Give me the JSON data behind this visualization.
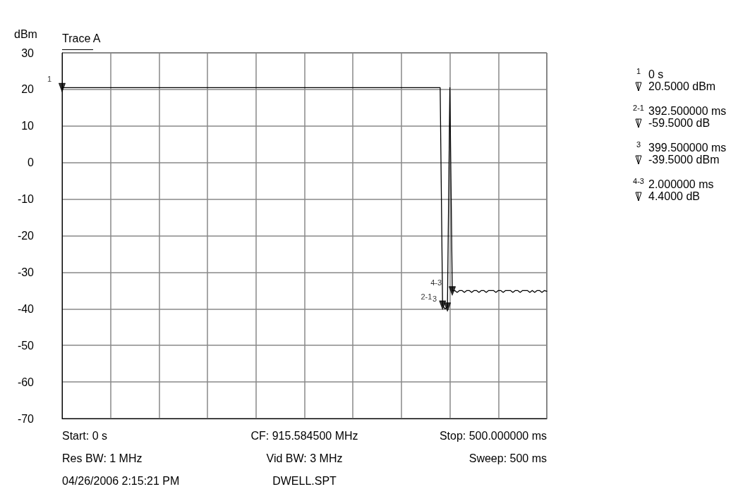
{
  "chart_data": {
    "type": "line",
    "subtitle": "Trace A",
    "ylabel": "dBm",
    "categories": [
      null,
      null,
      null,
      null,
      null,
      null,
      null,
      null,
      null,
      null,
      null,
      null,
      null,
      null,
      null,
      null,
      null,
      null,
      null,
      null,
      null,
      null,
      null,
      null,
      null,
      null,
      null,
      null,
      null,
      null,
      null,
      null,
      null,
      null,
      null,
      null,
      null,
      null,
      null,
      null,
      null,
      null,
      null,
      null,
      null,
      null,
      null,
      null,
      null,
      null,
      null,
      null,
      null,
      null,
      null,
      null,
      null,
      null,
      null,
      null,
      null,
      null,
      null,
      null,
      null,
      null,
      null,
      null,
      null,
      null,
      null,
      null,
      null,
      null,
      null,
      null,
      null,
      null,
      null,
      null,
      null,
      null,
      null,
      null,
      null,
      null,
      null,
      null,
      null,
      null,
      null,
      null,
      null,
      null,
      null,
      null,
      null,
      null,
      null,
      null,
      null,
      null,
      null,
      null,
      null,
      null,
      null,
      null,
      null,
      null,
      null,
      null,
      null,
      null,
      null,
      null,
      null,
      null,
      null,
      null,
      null,
      null,
      null,
      null,
      null,
      null,
      null,
      null,
      null,
      null,
      null,
      null,
      null,
      null,
      null,
      null,
      null,
      null,
      null,
      null,
      null,
      null,
      null,
      null,
      null,
      null,
      null,
      null,
      null,
      null,
      null,
      null,
      null,
      null,
      null,
      null,
      null,
      null,
      null,
      null,
      null,
      null,
      null,
      null,
      null,
      null,
      null,
      null,
      null,
      null,
      null,
      null,
      null,
      null,
      null,
      null,
      null,
      null,
      null,
      null,
      null,
      null,
      null,
      null,
      null,
      null,
      null,
      null,
      null,
      null,
      null,
      null,
      null,
      null,
      null,
      null,
      null,
      null,
      null,
      null,
      null
    ],
    "series": [
      {
        "color": "#000000",
        "values": [
          20.5,
          20.5,
          20.5,
          20.5,
          20.5,
          20.5,
          20.5,
          20.5,
          20.5,
          20.5,
          20.5,
          20.5,
          20.5,
          20.5,
          20.5,
          20.5,
          20.5,
          20.5,
          20.5,
          20.5,
          20.5,
          20.5,
          20.5,
          20.5,
          20.5,
          20.5,
          20.5,
          20.5,
          20.5,
          20.5,
          20.5,
          20.5,
          20.5,
          20.5,
          20.5,
          20.5,
          20.5,
          20.5,
          20.5,
          20.5,
          20.5,
          20.5,
          20.5,
          20.5,
          20.5,
          20.5,
          20.5,
          20.5,
          20.5,
          20.5,
          20.5,
          20.5,
          20.5,
          20.5,
          20.5,
          20.5,
          20.5,
          20.5,
          20.5,
          20.5,
          20.5,
          20.5,
          20.5,
          20.5,
          20.5,
          20.5,
          20.5,
          20.5,
          20.5,
          20.5,
          20.5,
          20.5,
          20.5,
          20.5,
          20.5,
          20.5,
          20.5,
          20.5,
          20.5,
          20.5,
          20.5,
          20.5,
          20.5,
          20.5,
          20.5,
          20.5,
          20.5,
          20.5,
          20.5,
          20.5,
          20.5,
          20.5,
          20.5,
          20.5,
          20.5,
          20.5,
          20.5,
          20.5,
          20.5,
          20.5,
          20.5,
          20.5,
          20.5,
          20.5,
          20.5,
          20.5,
          20.5,
          20.5,
          20.5,
          20.5,
          20.5,
          20.5,
          20.5,
          20.5,
          20.5,
          20.5,
          20.5,
          20.5,
          20.5,
          20.5,
          20.5,
          20.5,
          20.5,
          20.5,
          20.5,
          20.5,
          20.5,
          20.5,
          20.5,
          20.5,
          20.5,
          20.5,
          20.5,
          20.5,
          20.5,
          20.5,
          20.5,
          20.5,
          20.5,
          20.5,
          20.5,
          20.5,
          20.5,
          20.5,
          20.5,
          20.5,
          20.5,
          20.5,
          20.5,
          20.5,
          20.5,
          20.5,
          20.5,
          20.5,
          20.5,
          20.5,
          20.5,
          -39,
          -40,
          -39.5,
          20.5,
          -35.1,
          -35,
          -35.5,
          -35,
          -35,
          -35.5,
          -35,
          -35,
          -35.5,
          -35,
          -35,
          -35.5,
          -35,
          -35,
          -35.5,
          -35,
          -35,
          -35,
          -35.5,
          -35,
          -35,
          -35.5,
          -35,
          -35,
          -35,
          -35.5,
          -35,
          -35,
          -35.5,
          -35,
          -35,
          -35,
          -35.5,
          -35,
          -35.5,
          -35,
          -35,
          -35.5,
          -35,
          -35.2
        ]
      },
      {
        "type": "scatter",
        "marker": "triangle",
        "color": "#000000",
        "values": [
          20.5,
          null,
          null,
          null,
          null,
          null,
          null,
          null,
          null,
          null,
          null,
          null,
          null,
          null,
          null,
          null,
          null,
          null,
          null,
          null,
          null,
          null,
          null,
          null,
          null,
          null,
          null,
          null,
          null,
          null,
          null,
          null,
          null,
          null,
          null,
          null,
          null,
          null,
          null,
          null,
          null,
          null,
          null,
          null,
          null,
          null,
          null,
          null,
          null,
          null,
          null,
          null,
          null,
          null,
          null,
          null,
          null,
          null,
          null,
          null,
          null,
          null,
          null,
          null,
          null,
          null,
          null,
          null,
          null,
          null,
          null,
          null,
          null,
          null,
          null,
          null,
          null,
          null,
          null,
          null,
          null,
          null,
          null,
          null,
          null,
          null,
          null,
          null,
          null,
          null,
          null,
          null,
          null,
          null,
          null,
          null,
          null,
          null,
          null,
          null,
          null,
          null,
          null,
          null,
          null,
          null,
          null,
          null,
          null,
          null,
          null,
          null,
          null,
          null,
          null,
          null,
          null,
          null,
          null,
          null,
          null,
          null,
          null,
          null,
          null,
          null,
          null,
          null,
          null,
          null,
          null,
          null,
          null,
          null,
          null,
          null,
          null,
          null,
          null,
          null,
          null,
          null,
          null,
          null,
          null,
          null,
          null,
          null,
          null,
          null,
          null,
          null,
          null,
          null,
          null,
          null,
          null,
          -39,
          null,
          -39.5,
          null,
          -35.1,
          null,
          null,
          null,
          null,
          null,
          null,
          null,
          null,
          null,
          null,
          null,
          null,
          null,
          null,
          null,
          null,
          null,
          null,
          null,
          null,
          null,
          null,
          null,
          null,
          null,
          null,
          null,
          null,
          null,
          null,
          null,
          null,
          null,
          null,
          null,
          null,
          null,
          null,
          null
        ]
      }
    ],
    "ylim": [
      -70,
      30
    ],
    "yticks": [
      -70,
      -60,
      -50,
      -40,
      -30,
      -20,
      -10,
      0,
      10,
      20,
      30
    ],
    "grid": true,
    "marker": "none",
    "line_style": "solid",
    "tick_labels": "y",
    "annotations": [
      "1",
      "0 s",
      "20.5000 dBm",
      "2-1",
      "392.500000 ms",
      "-59.5000 dB",
      "3",
      "399.500000 ms",
      "-39.5000 dBm",
      "4-3",
      "2.000000 ms",
      "4.4000 dB",
      "Start: 0 s",
      "CF: 915.584500 MHz",
      "Stop: 500.000000 ms",
      "Res BW: 1 MHz",
      "Vid BW: 3 MHz",
      "Sweep: 500 ms",
      "04/26/2006 2:15:21 PM",
      "DWELL.SPT"
    ]
  }
}
